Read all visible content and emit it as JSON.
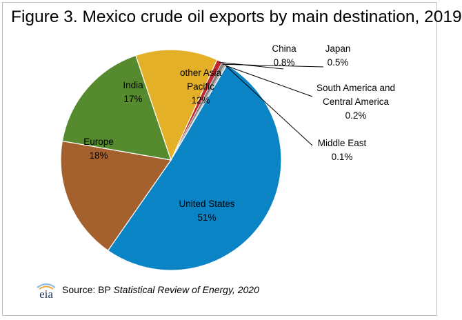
{
  "title": "Figure 3. Mexico crude oil exports by main destination, 2019",
  "source": {
    "prefix": "Source: BP ",
    "publication": "Statistical Review of Energy, 2020"
  },
  "logo": {
    "icon": "eia-logo-icon",
    "text": "eia",
    "colors": [
      "#8fc1e3",
      "#f2a93b"
    ]
  },
  "chart_data": {
    "type": "pie",
    "title": "Figure 3. Mexico crude oil exports by main destination, 2019",
    "unit": "%",
    "start": "United States slice begins near the 1-o'clock position, slices proceed clockwise",
    "slices": [
      {
        "name": "United States",
        "value": 51,
        "label": "51%",
        "color": "#0b84c6"
      },
      {
        "name": "Europe",
        "value": 18,
        "label": "18%",
        "color": "#a5612d"
      },
      {
        "name": "India",
        "value": 17,
        "label": "17%",
        "color": "#568a2f"
      },
      {
        "name": "other Asia Pacific",
        "value": 12,
        "label": "12%",
        "color": "#e3b028"
      },
      {
        "name": "China",
        "value": 0.8,
        "label": "0.8%",
        "color": "#c0292f"
      },
      {
        "name": "Japan",
        "value": 0.5,
        "label": "0.5%",
        "color": "#7f7f7f"
      },
      {
        "name": "South America and Central America",
        "value": 0.2,
        "label": "0.2%",
        "color": "#a6a6a6"
      },
      {
        "name": "Middle East",
        "value": 0.1,
        "label": "0.1%",
        "color": "#c9c9c9"
      }
    ]
  }
}
